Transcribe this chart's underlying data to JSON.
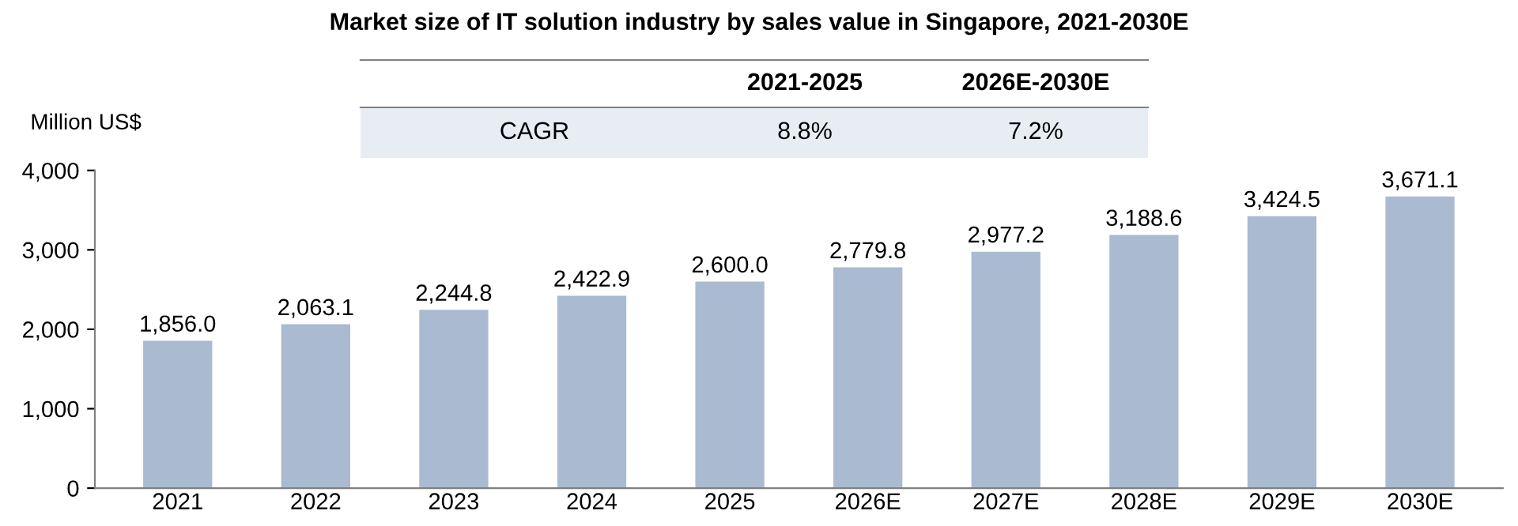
{
  "chart_data": {
    "type": "bar",
    "title": "Market size of IT solution industry by sales value in Singapore, 2021-2030E",
    "ylabel": "Million US$",
    "categories": [
      "2021",
      "2022",
      "2023",
      "2024",
      "2025",
      "2026E",
      "2027E",
      "2028E",
      "2029E",
      "2030E"
    ],
    "values": [
      1856.0,
      2063.1,
      2244.8,
      2422.9,
      2600.0,
      2779.8,
      2977.2,
      3188.6,
      3424.5,
      3671.1
    ],
    "value_labels": [
      "1,856.0",
      "2,063.1",
      "2,244.8",
      "2,422.9",
      "2,600.0",
      "2,779.8",
      "2,977.2",
      "3,188.6",
      "3,424.5",
      "3,671.1"
    ],
    "color": "#aabad0",
    "ylim": [
      0,
      4000
    ],
    "yticks": [
      0,
      {
        "value": 1000,
        "label": "1,000"
      },
      {
        "value": 2000,
        "label": "2,000"
      },
      {
        "value": 3000,
        "label": "3,000"
      },
      {
        "value": 4000,
        "label": "4,000"
      }
    ],
    "grid": false,
    "annotations": [
      "2021-2025",
      "2026E-2030E",
      "CAGR",
      "8.8%",
      "7.2%"
    ]
  }
}
